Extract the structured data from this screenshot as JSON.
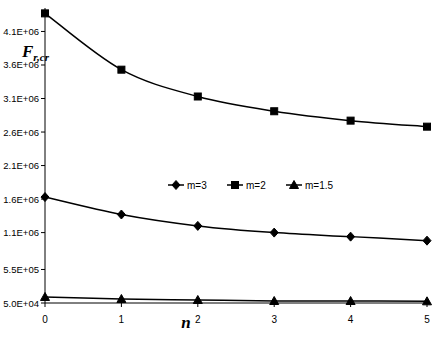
{
  "chart_data": {
    "type": "line",
    "x_label": "n",
    "y_label": "Fr,cr",
    "x": [
      0,
      1,
      2,
      3,
      4,
      5
    ],
    "series": [
      {
        "name": "m=3",
        "color": "#000000",
        "marker": "diamond",
        "line_style": "solid",
        "values": [
          1630000,
          1370000,
          1200000,
          1100000,
          1040000,
          980000
        ]
      },
      {
        "name": "m=2",
        "color": "#000000",
        "marker": "square",
        "line_style": "solid",
        "values": [
          4370000,
          3530000,
          3130000,
          2910000,
          2770000,
          2680000
        ]
      },
      {
        "name": "m=1.5",
        "color": "#000000",
        "marker": "triangle",
        "line_style": "solid",
        "values": [
          140000,
          110000,
          95000,
          80000,
          80000,
          75000
        ]
      }
    ],
    "xlim": [
      0,
      5
    ],
    "xticks": [
      0,
      1,
      2,
      3,
      4,
      5
    ],
    "ylim": [
      50000,
      4450000
    ],
    "yticks": [
      {
        "value": 50000,
        "label": "5.0E+04"
      },
      {
        "value": 550000,
        "label": "5.5E+05"
      },
      {
        "value": 1100000,
        "label": "1.1E+06"
      },
      {
        "value": 1600000,
        "label": "1.6E+06"
      },
      {
        "value": 2100000,
        "label": "2.1E+06"
      },
      {
        "value": 2600000,
        "label": "2.6E+06"
      },
      {
        "value": 3100000,
        "label": "3.1E+06"
      },
      {
        "value": 3600000,
        "label": "3.6E+06"
      },
      {
        "value": 4100000,
        "label": "4.1E+06"
      }
    ],
    "grid": false,
    "legend": "center"
  }
}
